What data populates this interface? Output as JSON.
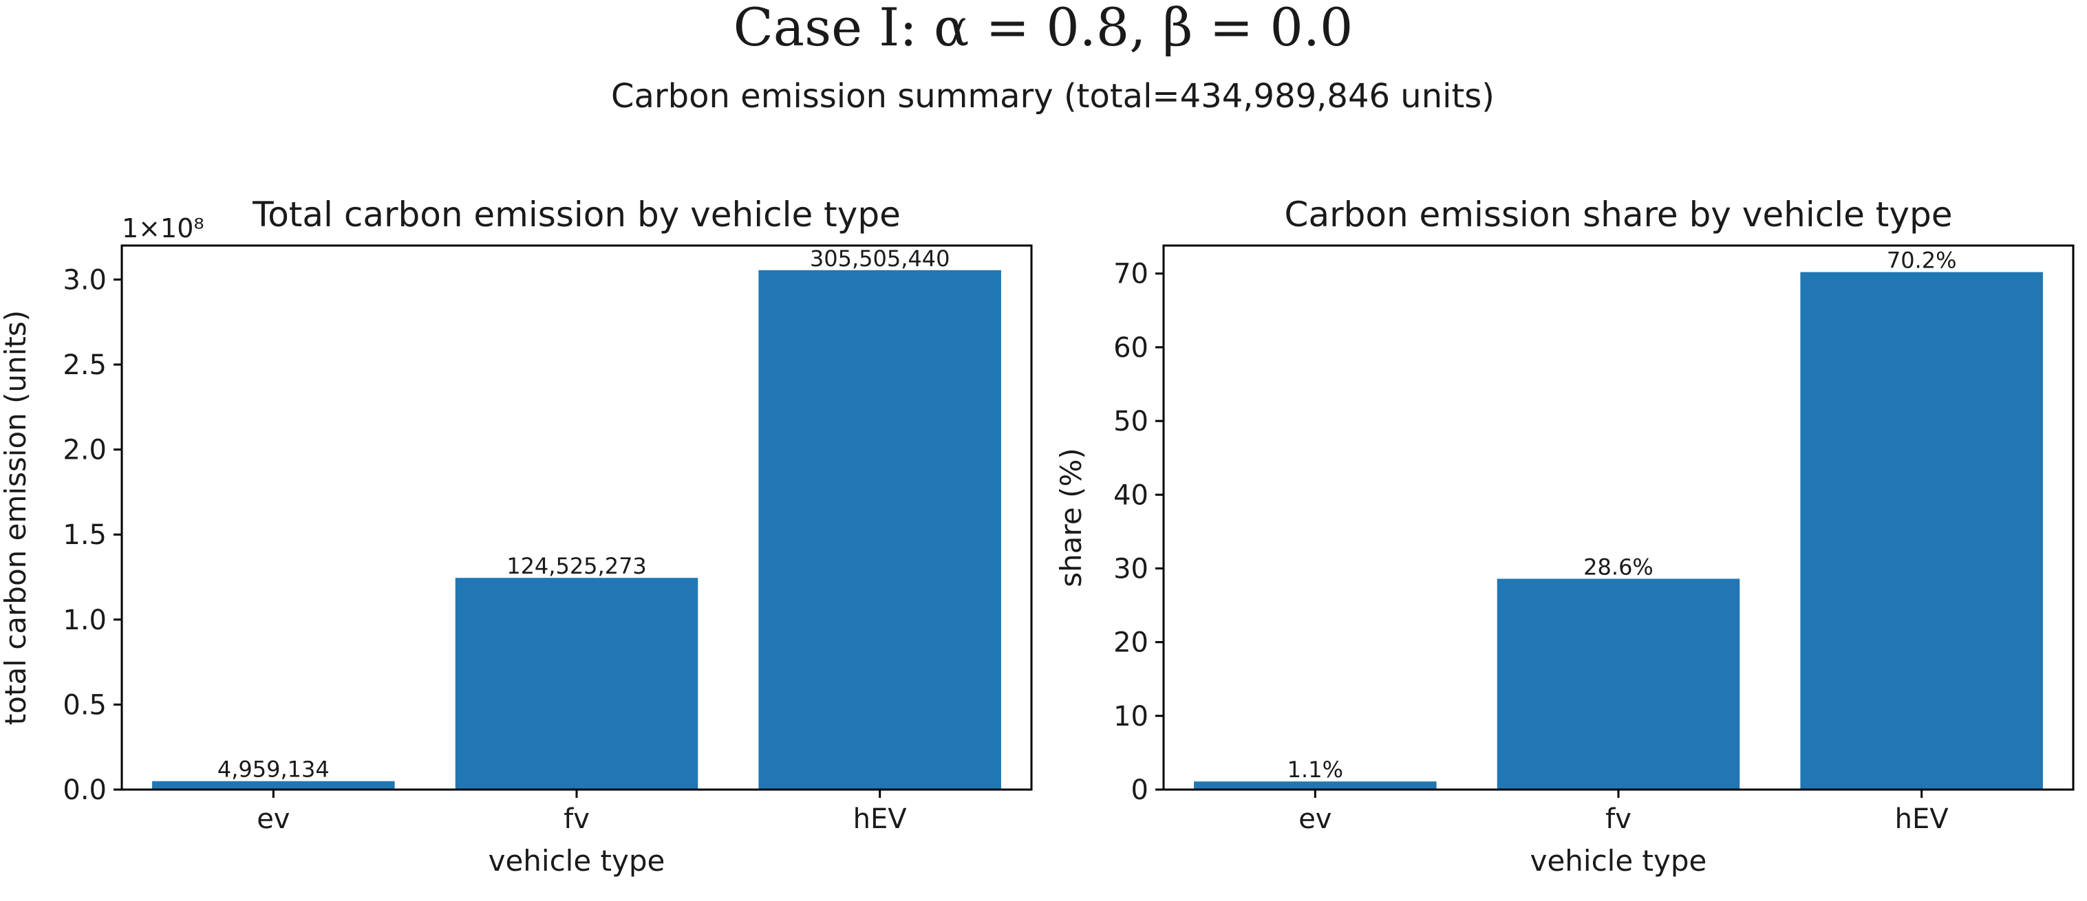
{
  "figure": {
    "suptitle": "Case I:  α = 0.8,  β = 0.0",
    "subtitle": "Carbon emission summary (total=434,989,846 units)",
    "bar_color": "#2077b4"
  },
  "chart_data": [
    {
      "type": "bar",
      "title": "Total carbon emission by vehicle type",
      "xlabel": "vehicle type",
      "ylabel": "total carbon emission (units)",
      "categories": [
        "ev",
        "fv",
        "hEV"
      ],
      "values": [
        4959134,
        124525273,
        305505440
      ],
      "value_labels": [
        "4,959,134",
        "124,525,273",
        "305,505,440"
      ],
      "ylim": [
        0,
        320000000
      ],
      "yticks": [
        0,
        50000000,
        100000000,
        150000000,
        200000000,
        250000000,
        300000000
      ],
      "ytick_labels": [
        "0.0",
        "0.5",
        "1.0",
        "1.5",
        "2.0",
        "2.5",
        "3.0"
      ],
      "offset_text": "1×10⁸",
      "grid": false
    },
    {
      "type": "bar",
      "title": "Carbon emission share by vehicle type",
      "xlabel": "vehicle type",
      "ylabel": "share (%)",
      "categories": [
        "ev",
        "fv",
        "hEV"
      ],
      "values": [
        1.1,
        28.6,
        70.2
      ],
      "value_labels": [
        "1.1%",
        "28.6%",
        "70.2%"
      ],
      "ylim": [
        0,
        73.8
      ],
      "yticks": [
        0,
        10,
        20,
        30,
        40,
        50,
        60,
        70
      ],
      "ytick_labels": [
        "0",
        "10",
        "20",
        "30",
        "40",
        "50",
        "60",
        "70"
      ],
      "offset_text": "",
      "grid": false
    }
  ]
}
